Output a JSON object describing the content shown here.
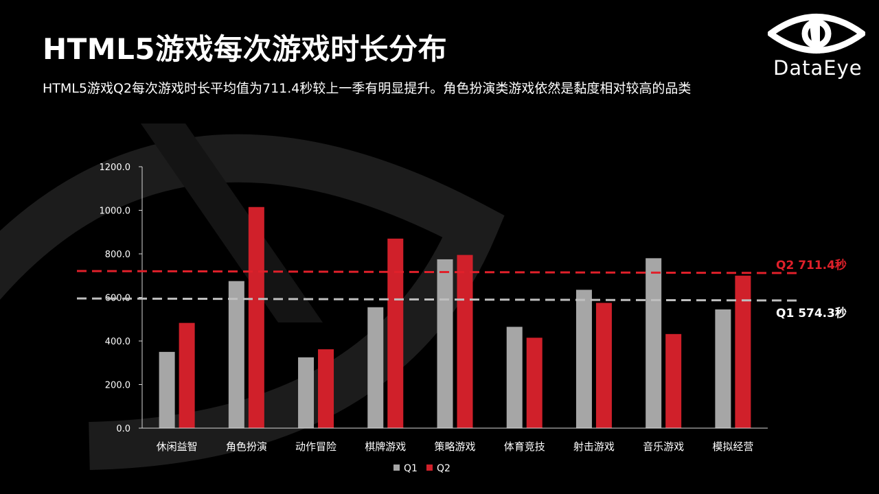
{
  "header": {
    "title": "HTML5游戏每次游戏时长分布",
    "subtitle": "HTML5游戏Q2每次游戏时长平均值为711.4秒较上一季有明显提升。角色扮演类游戏依然是黏度相对较高的品类"
  },
  "logo": {
    "text": "DataEye",
    "icon": "eye-logo-icon"
  },
  "colors": {
    "q1": "#a6a6a6",
    "q2": "#d0202a",
    "background": "#000000",
    "ref_q1": "#ffffff",
    "ref_q2": "#e0202a"
  },
  "chart_data": {
    "type": "bar",
    "categories": [
      "休闲益智",
      "角色扮演",
      "动作冒险",
      "棋牌游戏",
      "策略游戏",
      "体育竞技",
      "射击游戏",
      "音乐游戏",
      "模拟经营"
    ],
    "series": [
      {
        "name": "Q1",
        "values": [
          350,
          675,
          325,
          555,
          775,
          465,
          635,
          780,
          545
        ]
      },
      {
        "name": "Q2",
        "values": [
          483,
          1015,
          362,
          870,
          795,
          415,
          575,
          432,
          700
        ]
      }
    ],
    "ylim": [
      0,
      1200
    ],
    "yticks": [
      "0.0",
      "200.0",
      "400.0",
      "600.0",
      "800.0",
      "1000.0",
      "1200.0"
    ],
    "reference_lines": [
      {
        "series": "Q2",
        "label": "Q2  711.4秒",
        "value": 711.4
      },
      {
        "series": "Q1",
        "label": "Q1   574.3秒",
        "value": 574.3
      }
    ],
    "legend": "bottom-center",
    "grid": false
  }
}
